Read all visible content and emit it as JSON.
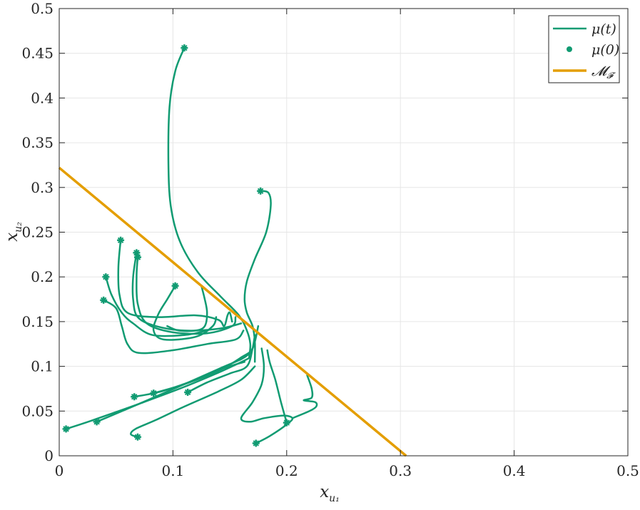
{
  "chart_data": {
    "type": "line",
    "title": "",
    "xlabel": {
      "main": "x",
      "sub": "u₁"
    },
    "ylabel": {
      "main": "x",
      "sub": "u₂"
    },
    "xlim": [
      0,
      0.5
    ],
    "ylim": [
      0,
      0.5
    ],
    "grid": true,
    "legend_position": "top-right",
    "x_ticks": [
      0,
      0.1,
      0.2,
      0.3,
      0.4,
      0.5
    ],
    "x_tick_labels": [
      "0",
      "0.1",
      "0.2",
      "0.3",
      "0.4",
      "0.5"
    ],
    "y_ticks": [
      0,
      0.05,
      0.1,
      0.15,
      0.2,
      0.25,
      0.3,
      0.35,
      0.4,
      0.45,
      0.5
    ],
    "y_tick_labels": [
      "0",
      "0.05",
      "0.1",
      "0.15",
      "0.2",
      "0.25",
      "0.3",
      "0.35",
      "0.4",
      "0.45",
      "0.5"
    ],
    "colors": {
      "trajectory": "#119b72",
      "manifold": "#e49e00",
      "grid": "#e6e6e6",
      "axis": "#262626"
    },
    "legend": [
      {
        "label": "μ(t)",
        "kind": "line"
      },
      {
        "label": "μ(0)",
        "kind": "marker"
      },
      {
        "label": "𝓜",
        "sub": "𝓕",
        "kind": "manifold"
      }
    ],
    "manifold_line": {
      "x": [
        0,
        0.305
      ],
      "y": [
        0.322,
        0
      ]
    },
    "trajectories": [
      {
        "points": [
          [
            0.11,
            0.456
          ],
          [
            0.102,
            0.43
          ],
          [
            0.097,
            0.39
          ],
          [
            0.096,
            0.33
          ],
          [
            0.098,
            0.28
          ],
          [
            0.106,
            0.24
          ],
          [
            0.122,
            0.205
          ],
          [
            0.142,
            0.178
          ],
          [
            0.158,
            0.157
          ],
          [
            0.165,
            0.14
          ],
          [
            0.168,
            0.125
          ],
          [
            0.167,
            0.11
          ]
        ]
      },
      {
        "points": [
          [
            0.177,
            0.296
          ],
          [
            0.184,
            0.294
          ],
          [
            0.186,
            0.28
          ],
          [
            0.182,
            0.25
          ],
          [
            0.172,
            0.22
          ],
          [
            0.165,
            0.195
          ],
          [
            0.163,
            0.175
          ],
          [
            0.165,
            0.16
          ],
          [
            0.17,
            0.145
          ],
          [
            0.172,
            0.128
          ],
          [
            0.172,
            0.105
          ]
        ]
      },
      {
        "points": [
          [
            0.054,
            0.241
          ],
          [
            0.052,
            0.21
          ],
          [
            0.053,
            0.18
          ],
          [
            0.06,
            0.16
          ],
          [
            0.085,
            0.155
          ],
          [
            0.12,
            0.157
          ],
          [
            0.14,
            0.152
          ],
          [
            0.145,
            0.145
          ],
          [
            0.148,
            0.157
          ],
          [
            0.15,
            0.16
          ],
          [
            0.152,
            0.15
          ]
        ]
      },
      {
        "points": [
          [
            0.068,
            0.227
          ],
          [
            0.065,
            0.2
          ],
          [
            0.065,
            0.175
          ],
          [
            0.069,
            0.155
          ],
          [
            0.085,
            0.145
          ],
          [
            0.11,
            0.14
          ],
          [
            0.14,
            0.142
          ],
          [
            0.16,
            0.148
          ]
        ]
      },
      {
        "points": [
          [
            0.069,
            0.222
          ],
          [
            0.068,
            0.2
          ],
          [
            0.069,
            0.17
          ],
          [
            0.077,
            0.148
          ],
          [
            0.1,
            0.138
          ],
          [
            0.13,
            0.137
          ],
          [
            0.152,
            0.145
          ],
          [
            0.155,
            0.155
          ]
        ]
      },
      {
        "points": [
          [
            0.041,
            0.2
          ],
          [
            0.046,
            0.18
          ],
          [
            0.055,
            0.16
          ],
          [
            0.065,
            0.148
          ],
          [
            0.082,
            0.135
          ],
          [
            0.11,
            0.135
          ],
          [
            0.13,
            0.14
          ]
        ]
      },
      {
        "points": [
          [
            0.039,
            0.174
          ],
          [
            0.05,
            0.165
          ],
          [
            0.055,
            0.145
          ],
          [
            0.06,
            0.125
          ],
          [
            0.07,
            0.115
          ],
          [
            0.1,
            0.118
          ],
          [
            0.13,
            0.125
          ],
          [
            0.155,
            0.13
          ],
          [
            0.162,
            0.14
          ]
        ]
      },
      {
        "points": [
          [
            0.102,
            0.19
          ],
          [
            0.095,
            0.175
          ],
          [
            0.087,
            0.158
          ],
          [
            0.083,
            0.14
          ],
          [
            0.092,
            0.13
          ],
          [
            0.12,
            0.133
          ],
          [
            0.135,
            0.145
          ],
          [
            0.138,
            0.155
          ]
        ]
      },
      {
        "points": [
          [
            0.125,
            0.19
          ],
          [
            0.128,
            0.175
          ],
          [
            0.13,
            0.16
          ],
          [
            0.128,
            0.145
          ],
          [
            0.12,
            0.14
          ],
          [
            0.105,
            0.14
          ],
          [
            0.095,
            0.145
          ]
        ]
      },
      {
        "points": [
          [
            0.006,
            0.03
          ],
          [
            0.03,
            0.04
          ],
          [
            0.07,
            0.058
          ],
          [
            0.11,
            0.077
          ],
          [
            0.14,
            0.093
          ],
          [
            0.162,
            0.106
          ],
          [
            0.168,
            0.11
          ]
        ]
      },
      {
        "points": [
          [
            0.033,
            0.038
          ],
          [
            0.07,
            0.058
          ],
          [
            0.11,
            0.08
          ],
          [
            0.14,
            0.097
          ],
          [
            0.16,
            0.108
          ],
          [
            0.168,
            0.115
          ]
        ]
      },
      {
        "points": [
          [
            0.066,
            0.066
          ],
          [
            0.09,
            0.072
          ],
          [
            0.12,
            0.085
          ],
          [
            0.145,
            0.098
          ],
          [
            0.163,
            0.105
          ]
        ]
      },
      {
        "points": [
          [
            0.083,
            0.07
          ],
          [
            0.11,
            0.08
          ],
          [
            0.14,
            0.095
          ],
          [
            0.16,
            0.11
          ],
          [
            0.17,
            0.12
          ],
          [
            0.175,
            0.145
          ]
        ]
      },
      {
        "points": [
          [
            0.113,
            0.071
          ],
          [
            0.13,
            0.082
          ],
          [
            0.15,
            0.092
          ],
          [
            0.165,
            0.1
          ],
          [
            0.17,
            0.12
          ],
          [
            0.172,
            0.135
          ]
        ]
      },
      {
        "points": [
          [
            0.069,
            0.021
          ],
          [
            0.063,
            0.024
          ],
          [
            0.067,
            0.03
          ],
          [
            0.085,
            0.04
          ],
          [
            0.11,
            0.055
          ],
          [
            0.14,
            0.072
          ],
          [
            0.16,
            0.085
          ],
          [
            0.172,
            0.1
          ]
        ]
      },
      {
        "points": [
          [
            0.173,
            0.014
          ],
          [
            0.185,
            0.022
          ],
          [
            0.2,
            0.035
          ],
          [
            0.205,
            0.042
          ],
          [
            0.197,
            0.045
          ],
          [
            0.18,
            0.042
          ],
          [
            0.168,
            0.038
          ],
          [
            0.16,
            0.042
          ],
          [
            0.17,
            0.06
          ],
          [
            0.178,
            0.08
          ],
          [
            0.18,
            0.1
          ],
          [
            0.178,
            0.12
          ]
        ]
      },
      {
        "points": [
          [
            0.2,
            0.037
          ],
          [
            0.195,
            0.06
          ],
          [
            0.19,
            0.085
          ],
          [
            0.185,
            0.105
          ],
          [
            0.183,
            0.118
          ]
        ]
      },
      {
        "points": [
          [
            0.218,
            0.09
          ],
          [
            0.222,
            0.075
          ],
          [
            0.222,
            0.065
          ],
          [
            0.215,
            0.062
          ],
          [
            0.225,
            0.06
          ],
          [
            0.226,
            0.055
          ],
          [
            0.22,
            0.05
          ],
          [
            0.205,
            0.042
          ]
        ]
      }
    ],
    "start_points": [
      [
        0.11,
        0.456
      ],
      [
        0.177,
        0.296
      ],
      [
        0.054,
        0.241
      ],
      [
        0.068,
        0.227
      ],
      [
        0.069,
        0.222
      ],
      [
        0.041,
        0.2
      ],
      [
        0.039,
        0.174
      ],
      [
        0.102,
        0.19
      ],
      [
        0.006,
        0.03
      ],
      [
        0.033,
        0.038
      ],
      [
        0.066,
        0.066
      ],
      [
        0.083,
        0.07
      ],
      [
        0.113,
        0.071
      ],
      [
        0.069,
        0.021
      ],
      [
        0.173,
        0.014
      ],
      [
        0.2,
        0.037
      ]
    ]
  }
}
